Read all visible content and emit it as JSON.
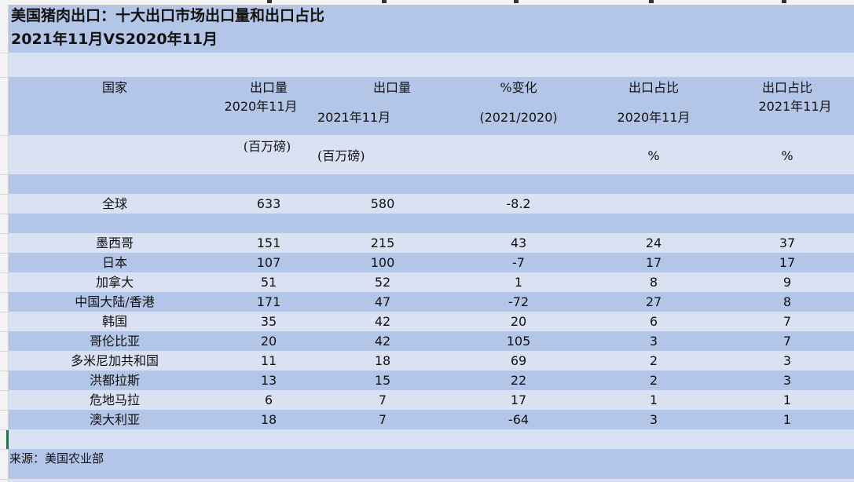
{
  "title_line1": "美国猪肉出口：十大出口市场出口量和出口占比",
  "title_line2": "2021年11月VS2020年11月",
  "headers": {
    "country": "国家",
    "vol2020": "出口量",
    "vol2020_period": "2020年11月",
    "vol2020_unit": "(百万磅)",
    "vol2021": "出口量",
    "vol2021_period": "2021年11月",
    "vol2021_unit": "(百万磅)",
    "change": "%变化",
    "change_period": "(2021/2020)",
    "share2020": "出口占比",
    "share2020_period": "2020年11月",
    "share2020_unit": "%",
    "share2021": "出口占比",
    "share2021_period": "2021年11月",
    "share2021_unit": "%"
  },
  "global_row": {
    "country": "全球",
    "vol2020": "633",
    "vol2021": "580",
    "change": "-8.2"
  },
  "rows": [
    {
      "country": "墨西哥",
      "vol2020": "151",
      "vol2021": "215",
      "change": "43",
      "share2020": "24",
      "share2021": "37"
    },
    {
      "country": "日本",
      "vol2020": "107",
      "vol2021": "100",
      "change": "-7",
      "share2020": "17",
      "share2021": "17"
    },
    {
      "country": "加拿大",
      "vol2020": "51",
      "vol2021": "52",
      "change": "1",
      "share2020": "8",
      "share2021": "9"
    },
    {
      "country": "中国大陆/香港",
      "vol2020": "171",
      "vol2021": "47",
      "change": "-72",
      "share2020": "27",
      "share2021": "8"
    },
    {
      "country": "韩国",
      "vol2020": "35",
      "vol2021": "42",
      "change": "20",
      "share2020": "6",
      "share2021": "7"
    },
    {
      "country": "哥伦比亚",
      "vol2020": "20",
      "vol2021": "42",
      "change": "105",
      "share2020": "3",
      "share2021": "7"
    },
    {
      "country": "多米尼加共和国",
      "vol2020": "11",
      "vol2021": "18",
      "change": "69",
      "share2020": "2",
      "share2021": "3"
    },
    {
      "country": "洪都拉斯",
      "vol2020": "13",
      "vol2021": "15",
      "change": "22",
      "share2020": "2",
      "share2021": "3"
    },
    {
      "country": "危地马拉",
      "vol2020": "6",
      "vol2021": "7",
      "change": "17",
      "share2020": "1",
      "share2021": "1"
    },
    {
      "country": "澳大利亚",
      "vol2020": "18",
      "vol2021": "7",
      "change": "-64",
      "share2020": "3",
      "share2021": "1"
    }
  ],
  "source": "来源：美国农业部",
  "colors": {
    "band_dark": "#b4c6e7",
    "band_light": "#d9e1f2",
    "selection_green": "#217346"
  }
}
